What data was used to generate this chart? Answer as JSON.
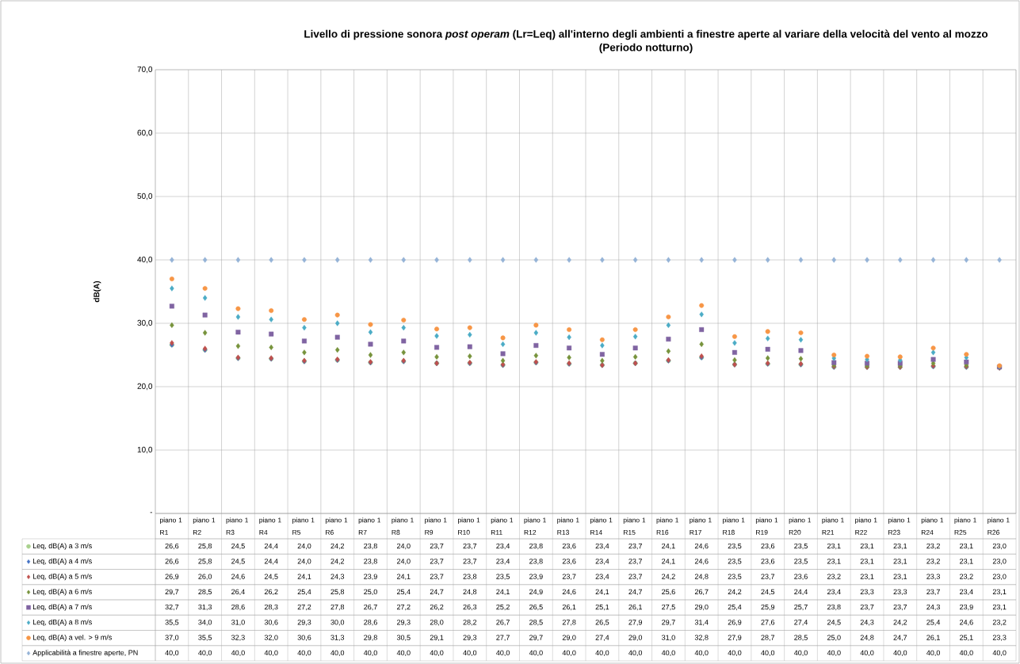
{
  "chart_data": {
    "type": "scatter",
    "title": "Livello di pressione sonora *post operam* (Lr=Leq) all'interno degli ambienti a finestre aperte al variare della velocità del vento al mozzo (Periodo notturno)",
    "ylabel": "dB(A)",
    "categories": [
      "piano 1 R1",
      "piano 1 R2",
      "piano 1 R3",
      "piano 1 R4",
      "piano 1 R5",
      "piano 1 R6",
      "piano 1 R7",
      "piano 1 R8",
      "piano 1 R9",
      "piano 1 R10",
      "piano 1 R11",
      "piano 1 R12",
      "piano 1 R13",
      "piano 1 R14",
      "piano 1 R15",
      "piano 1 R16",
      "piano 1 R17",
      "piano 1 R18",
      "piano 1 R19",
      "piano 1 R20",
      "piano 1 R21",
      "piano 1 R22",
      "piano 1 R23",
      "piano 1 R24",
      "piano 1 R25",
      "piano 1 R26"
    ],
    "series": [
      {
        "name": "Leq, dB(A) a 3 m/s",
        "color": "#a9d18e",
        "marker": "circle",
        "values": [
          26.6,
          25.8,
          24.5,
          24.4,
          24.0,
          24.2,
          23.8,
          24.0,
          23.7,
          23.7,
          23.4,
          23.8,
          23.6,
          23.4,
          23.7,
          24.1,
          24.6,
          23.5,
          23.6,
          23.5,
          23.1,
          23.1,
          23.1,
          23.2,
          23.1,
          23.0
        ],
        "value_labels": [
          "26,6",
          "25,8",
          "24,5",
          "24,4",
          "24,0",
          "24,2",
          "23,8",
          "24,0",
          "23,7",
          "23,7",
          "23,4",
          "23,8",
          "23,6",
          "23,4",
          "23,7",
          "24,1",
          "24,6",
          "23,5",
          "23,6",
          "23,5",
          "23,1",
          "23,1",
          "23,1",
          "23,2",
          "23,1",
          "23,0"
        ]
      },
      {
        "name": "Leq, dB(A) a 4 m/s",
        "color": "#4472c4",
        "marker": "diamond",
        "values": [
          26.6,
          25.8,
          24.5,
          24.4,
          24.0,
          24.2,
          23.8,
          24.0,
          23.7,
          23.7,
          23.4,
          23.8,
          23.6,
          23.4,
          23.7,
          24.1,
          24.6,
          23.5,
          23.6,
          23.5,
          23.1,
          23.1,
          23.1,
          23.2,
          23.1,
          23.0
        ],
        "value_labels": [
          "26,6",
          "25,8",
          "24,5",
          "24,4",
          "24,0",
          "24,2",
          "23,8",
          "24,0",
          "23,7",
          "23,7",
          "23,4",
          "23,8",
          "23,6",
          "23,4",
          "23,7",
          "24,1",
          "24,6",
          "23,5",
          "23,6",
          "23,5",
          "23,1",
          "23,1",
          "23,1",
          "23,2",
          "23,1",
          "23,0"
        ]
      },
      {
        "name": "Leq, dB(A) a 5 m/s",
        "color": "#c0504d",
        "marker": "diamond",
        "values": [
          26.9,
          26.0,
          24.6,
          24.5,
          24.1,
          24.3,
          23.9,
          24.1,
          23.7,
          23.8,
          23.5,
          23.9,
          23.7,
          23.4,
          23.7,
          24.2,
          24.8,
          23.5,
          23.7,
          23.6,
          23.2,
          23.1,
          23.1,
          23.3,
          23.2,
          23.0
        ],
        "value_labels": [
          "26,9",
          "26,0",
          "24,6",
          "24,5",
          "24,1",
          "24,3",
          "23,9",
          "24,1",
          "23,7",
          "23,8",
          "23,5",
          "23,9",
          "23,7",
          "23,4",
          "23,7",
          "24,2",
          "24,8",
          "23,5",
          "23,7",
          "23,6",
          "23,2",
          "23,1",
          "23,1",
          "23,3",
          "23,2",
          "23,0"
        ]
      },
      {
        "name": "Leq, dB(A) a 6 m/s",
        "color": "#77933c",
        "marker": "diamond",
        "values": [
          29.7,
          28.5,
          26.4,
          26.2,
          25.4,
          25.8,
          25.0,
          25.4,
          24.7,
          24.8,
          24.1,
          24.9,
          24.6,
          24.1,
          24.7,
          25.6,
          26.7,
          24.2,
          24.5,
          24.4,
          23.4,
          23.3,
          23.3,
          23.7,
          23.4,
          23.1
        ],
        "value_labels": [
          "29,7",
          "28,5",
          "26,4",
          "26,2",
          "25,4",
          "25,8",
          "25,0",
          "25,4",
          "24,7",
          "24,8",
          "24,1",
          "24,9",
          "24,6",
          "24,1",
          "24,7",
          "25,6",
          "26,7",
          "24,2",
          "24,5",
          "24,4",
          "23,4",
          "23,3",
          "23,3",
          "23,7",
          "23,4",
          "23,1"
        ]
      },
      {
        "name": "Leq, dB(A) a 7 m/s",
        "color": "#8064a2",
        "marker": "square",
        "values": [
          32.7,
          31.3,
          28.6,
          28.3,
          27.2,
          27.8,
          26.7,
          27.2,
          26.2,
          26.3,
          25.2,
          26.5,
          26.1,
          25.1,
          26.1,
          27.5,
          29.0,
          25.4,
          25.9,
          25.7,
          23.8,
          23.7,
          23.7,
          24.3,
          23.9,
          23.1
        ],
        "value_labels": [
          "32,7",
          "31,3",
          "28,6",
          "28,3",
          "27,2",
          "27,8",
          "26,7",
          "27,2",
          "26,2",
          "26,3",
          "25,2",
          "26,5",
          "26,1",
          "25,1",
          "26,1",
          "27,5",
          "29,0",
          "25,4",
          "25,9",
          "25,7",
          "23,8",
          "23,7",
          "23,7",
          "24,3",
          "23,9",
          "23,1"
        ]
      },
      {
        "name": "Leq, dB(A) a 8 m/s",
        "color": "#4bacc6",
        "marker": "diamond",
        "values": [
          35.5,
          34.0,
          31.0,
          30.6,
          29.3,
          30.0,
          28.6,
          29.3,
          28.0,
          28.2,
          26.7,
          28.5,
          27.8,
          26.5,
          27.9,
          29.7,
          31.4,
          26.9,
          27.6,
          27.4,
          24.5,
          24.3,
          24.2,
          25.4,
          24.6,
          23.2
        ],
        "value_labels": [
          "35,5",
          "34,0",
          "31,0",
          "30,6",
          "29,3",
          "30,0",
          "28,6",
          "29,3",
          "28,0",
          "28,2",
          "26,7",
          "28,5",
          "27,8",
          "26,5",
          "27,9",
          "29,7",
          "31,4",
          "26,9",
          "27,6",
          "27,4",
          "24,5",
          "24,3",
          "24,2",
          "25,4",
          "24,6",
          "23,2"
        ]
      },
      {
        "name": "Leq, dB(A) a vel. > 9 m/s",
        "color": "#f79646",
        "marker": "circle",
        "values": [
          37.0,
          35.5,
          32.3,
          32.0,
          30.6,
          31.3,
          29.8,
          30.5,
          29.1,
          29.3,
          27.7,
          29.7,
          29.0,
          27.4,
          29.0,
          31.0,
          32.8,
          27.9,
          28.7,
          28.5,
          25.0,
          24.8,
          24.7,
          26.1,
          25.1,
          23.3
        ],
        "value_labels": [
          "37,0",
          "35,5",
          "32,3",
          "32,0",
          "30,6",
          "31,3",
          "29,8",
          "30,5",
          "29,1",
          "29,3",
          "27,7",
          "29,7",
          "29,0",
          "27,4",
          "29,0",
          "31,0",
          "32,8",
          "27,9",
          "28,7",
          "28,5",
          "25,0",
          "24,8",
          "24,7",
          "26,1",
          "25,1",
          "23,3"
        ]
      },
      {
        "name": "Applicabilità a finestre aperte, PN",
        "color": "#95b3d7",
        "marker": "diamond",
        "values": [
          40.0,
          40.0,
          40.0,
          40.0,
          40.0,
          40.0,
          40.0,
          40.0,
          40.0,
          40.0,
          40.0,
          40.0,
          40.0,
          40.0,
          40.0,
          40.0,
          40.0,
          40.0,
          40.0,
          40.0,
          40.0,
          40.0,
          40.0,
          40.0,
          40.0,
          40.0
        ],
        "value_labels": [
          "40,0",
          "40,0",
          "40,0",
          "40,0",
          "40,0",
          "40,0",
          "40,0",
          "40,0",
          "40,0",
          "40,0",
          "40,0",
          "40,0",
          "40,0",
          "40,0",
          "40,0",
          "40,0",
          "40,0",
          "40,0",
          "40,0",
          "40,0",
          "40,0",
          "40,0",
          "40,0",
          "40,0",
          "40,0",
          "40,0"
        ]
      }
    ],
    "ylim": [
      0,
      70
    ],
    "yticks": [
      {
        "value": 0,
        "label": "-"
      },
      {
        "value": 10,
        "label": "10,0"
      },
      {
        "value": 20,
        "label": "20,0"
      },
      {
        "value": 30,
        "label": "30,0"
      },
      {
        "value": 40,
        "label": "40,0"
      },
      {
        "value": 50,
        "label": "50,0"
      },
      {
        "value": 60,
        "label": "60,0"
      },
      {
        "value": 70,
        "label": "70,0"
      }
    ],
    "grid": true,
    "legend": "bottom"
  }
}
